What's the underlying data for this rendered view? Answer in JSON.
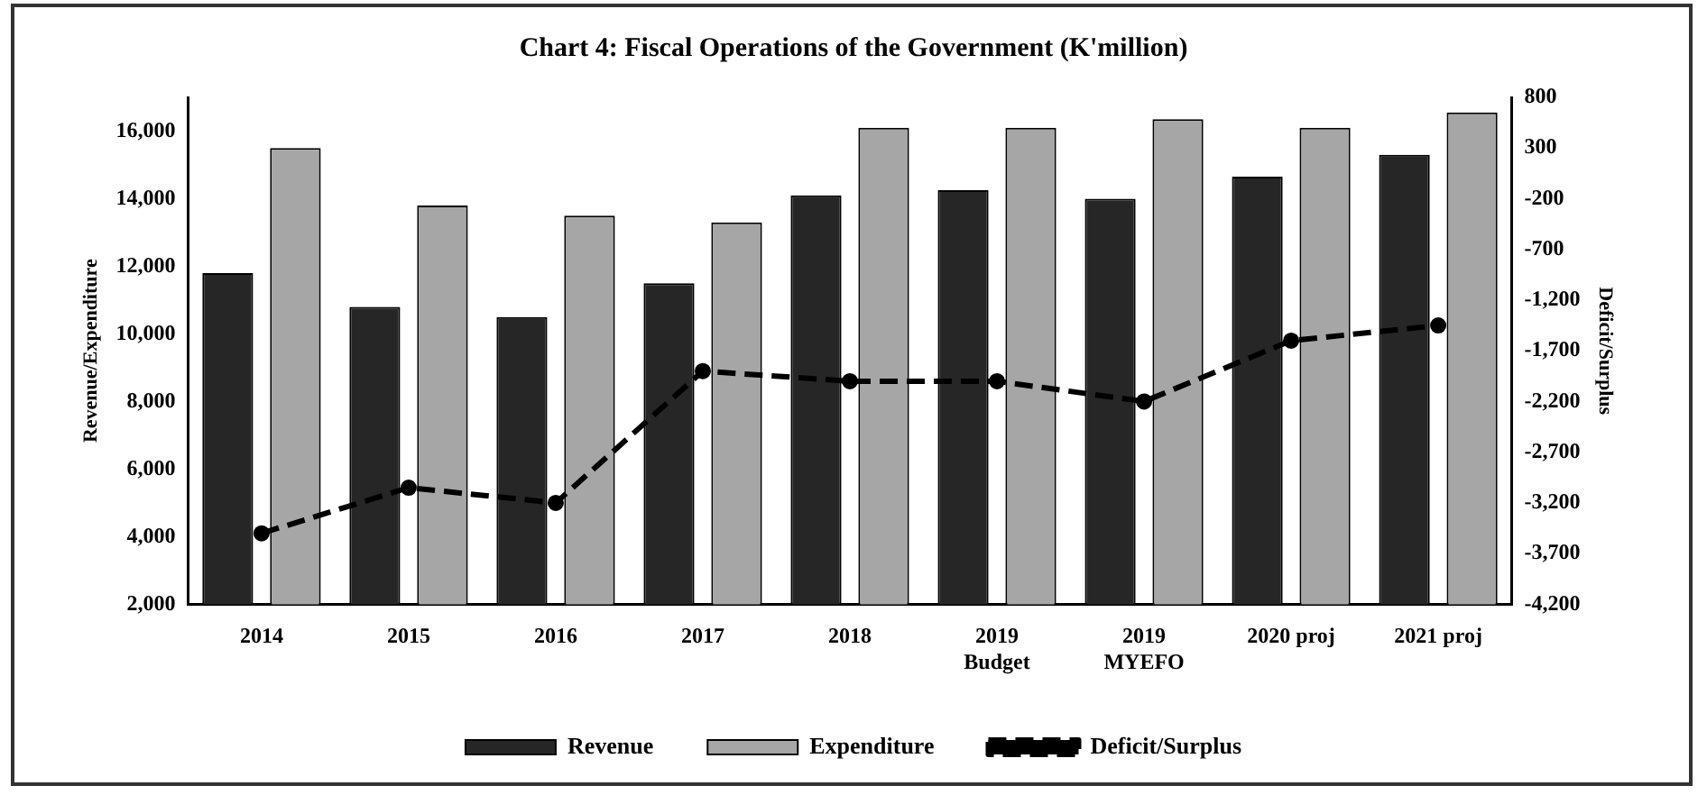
{
  "chart_data": {
    "type": "bar",
    "title": "Chart 4: Fiscal Operations of the Government (K'million)",
    "ylabel": "Revenue/Expenditure",
    "y2label": "Deficit/Surplus",
    "categories": [
      "2014",
      "2015",
      "2016",
      "2017",
      "2018",
      "2019\nBudget",
      "2019\nMYEFO",
      "2020 proj",
      "2021 proj"
    ],
    "series": [
      {
        "name": "Revenue",
        "color": "#262626",
        "values": [
          11800,
          10800,
          10500,
          11500,
          14100,
          14250,
          14000,
          14650,
          15300
        ]
      },
      {
        "name": "Expenditure",
        "color": "#a6a6a6",
        "values": [
          15500,
          13800,
          13500,
          13300,
          16100,
          16100,
          16350,
          16100,
          16550
        ]
      },
      {
        "name": "Deficit/Surplus",
        "type": "line",
        "axis": "y2",
        "color": "#000000",
        "line_style": "dashed",
        "marker": "circle",
        "values": [
          -3500,
          -3050,
          -3200,
          -1900,
          -2000,
          -2000,
          -2200,
          -1600,
          -1450
        ]
      }
    ],
    "ylim": [
      2000,
      17000
    ],
    "yticks": [
      {
        "value": 2000,
        "label": "2,000"
      },
      {
        "value": 4000,
        "label": "4,000"
      },
      {
        "value": 6000,
        "label": "6,000"
      },
      {
        "value": 8000,
        "label": "8,000"
      },
      {
        "value": 10000,
        "label": "10,000"
      },
      {
        "value": 12000,
        "label": "12,000"
      },
      {
        "value": 14000,
        "label": "14,000"
      },
      {
        "value": 16000,
        "label": "16,000"
      }
    ],
    "y2lim": [
      -4200,
      800
    ],
    "y2ticks": [
      {
        "value": -4200,
        "label": "-4,200"
      },
      {
        "value": -3700,
        "label": "-3,700"
      },
      {
        "value": -3200,
        "label": "-3,200"
      },
      {
        "value": -2700,
        "label": "-2,700"
      },
      {
        "value": -2200,
        "label": "-2,200"
      },
      {
        "value": -1700,
        "label": "-1,700"
      },
      {
        "value": -1200,
        "label": "-1,200"
      },
      -700,
      -200,
      300,
      800
    ],
    "grid": false,
    "legend": "bottom"
  }
}
